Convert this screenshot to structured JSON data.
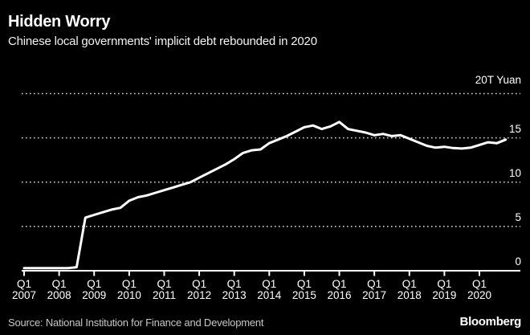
{
  "header": {
    "title": "Hidden Worry",
    "subtitle": "Chinese local governments' implicit debt rebounded in 2020"
  },
  "footer": {
    "source": "Source: National Institution for Finance and Development",
    "logo": "Bloomberg"
  },
  "colors": {
    "background": "#000000",
    "text": "#ffffff",
    "muted_text": "#c6c6c6",
    "grid": "#d9d9d9",
    "axis": "#ffffff",
    "line": "#ffffff"
  },
  "y_axis": {
    "unit_label": "20T Yuan",
    "ticks": [
      {
        "label": "15",
        "value": 15
      },
      {
        "label": "10",
        "value": 10
      },
      {
        "label": "5",
        "value": 5
      },
      {
        "label": "0",
        "value": 0
      }
    ]
  },
  "x_axis": {
    "tick_label_top": "Q1",
    "years": [
      "2007",
      "2008",
      "2009",
      "2010",
      "2011",
      "2012",
      "2013",
      "2014",
      "2015",
      "2016",
      "2017",
      "2018",
      "2019",
      "2020"
    ]
  },
  "chart_data": {
    "type": "line",
    "title": "Hidden Worry",
    "subtitle": "Chinese local governments' implicit debt rebounded in 2020",
    "ylabel": "T Yuan",
    "unit_label": "20T Yuan",
    "ylim": [
      0,
      20
    ],
    "y_ticks": [
      0,
      5,
      10,
      15,
      20
    ],
    "grid": "dotted horizontal",
    "legend": "none",
    "line_color": "#ffffff",
    "background": "#000000",
    "x_frequency": "quarterly",
    "categories": [
      "2007Q1",
      "2007Q2",
      "2007Q3",
      "2007Q4",
      "2008Q1",
      "2008Q2",
      "2008Q3",
      "2008Q4",
      "2009Q1",
      "2009Q2",
      "2009Q3",
      "2009Q4",
      "2010Q1",
      "2010Q2",
      "2010Q3",
      "2010Q4",
      "2011Q1",
      "2011Q2",
      "2011Q3",
      "2011Q4",
      "2012Q1",
      "2012Q2",
      "2012Q3",
      "2012Q4",
      "2013Q1",
      "2013Q2",
      "2013Q3",
      "2013Q4",
      "2014Q1",
      "2014Q2",
      "2014Q3",
      "2014Q4",
      "2015Q1",
      "2015Q2",
      "2015Q3",
      "2015Q4",
      "2016Q1",
      "2016Q2",
      "2016Q3",
      "2016Q4",
      "2017Q1",
      "2017Q2",
      "2017Q3",
      "2017Q4",
      "2018Q1",
      "2018Q2",
      "2018Q3",
      "2018Q4",
      "2019Q1",
      "2019Q2",
      "2019Q3",
      "2019Q4",
      "2020Q1",
      "2020Q2",
      "2020Q3",
      "2020Q4"
    ],
    "values": [
      0.3,
      0.3,
      0.3,
      0.3,
      0.3,
      0.3,
      0.4,
      6.0,
      6.3,
      6.6,
      6.9,
      7.1,
      7.9,
      8.3,
      8.5,
      8.8,
      9.1,
      9.4,
      9.7,
      10.0,
      10.5,
      11.0,
      11.5,
      12.0,
      12.6,
      13.3,
      13.6,
      13.7,
      14.4,
      14.8,
      15.2,
      15.7,
      16.2,
      16.4,
      16.0,
      16.3,
      16.8,
      16.0,
      15.8,
      15.6,
      15.3,
      15.45,
      15.2,
      15.3,
      14.9,
      14.5,
      14.1,
      13.9,
      14.0,
      13.85,
      13.8,
      13.9,
      14.2,
      14.5,
      14.4,
      14.8
    ]
  }
}
